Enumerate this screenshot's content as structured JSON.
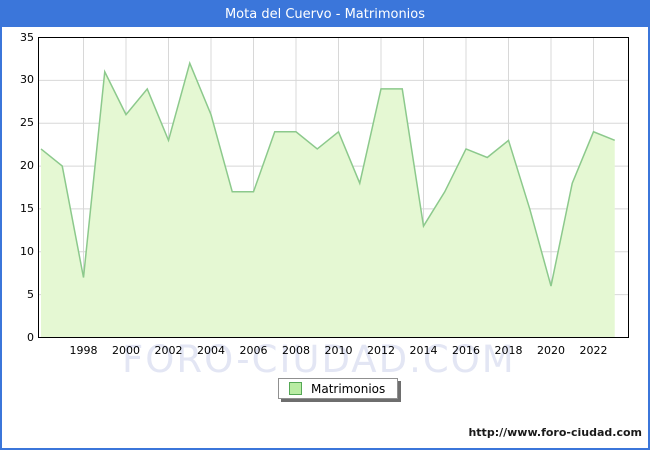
{
  "window": {
    "title": "Mota del Cuervo - Matrimonios"
  },
  "chart_data": {
    "type": "area",
    "title": "Mota del Cuervo - Matrimonios",
    "series_name": "Matrimonios",
    "years": [
      1996,
      1997,
      1998,
      1999,
      2000,
      2001,
      2002,
      2003,
      2004,
      2005,
      2006,
      2007,
      2008,
      2009,
      2010,
      2011,
      2012,
      2013,
      2014,
      2015,
      2016,
      2017,
      2018,
      2019,
      2020,
      2021,
      2022,
      2023
    ],
    "values": [
      22,
      20,
      7,
      31,
      26,
      29,
      23,
      32,
      26,
      17,
      17,
      24,
      24,
      22,
      24,
      18,
      29,
      29,
      13,
      17,
      22,
      21,
      23,
      15,
      6,
      18,
      24,
      23
    ],
    "ylim": [
      0,
      35
    ],
    "ytick_step": 5,
    "xticks": [
      1998,
      2000,
      2002,
      2004,
      2006,
      2008,
      2010,
      2012,
      2014,
      2016,
      2018,
      2020,
      2022
    ],
    "grid": true,
    "legend_position": "bottom-center",
    "colors": {
      "titlebar": "#3b76da",
      "area_fill": "#e5f8d3",
      "line": "#8cc98c",
      "gridline": "#d8d8d8",
      "frame": "#000000",
      "legend_swatch": "#b9eca3"
    }
  },
  "legend": {
    "label": "Matrimonios"
  },
  "watermark": {
    "text": "FORO-CIUDAD.COM"
  },
  "footer": {
    "url": "http://www.foro-ciudad.com"
  }
}
